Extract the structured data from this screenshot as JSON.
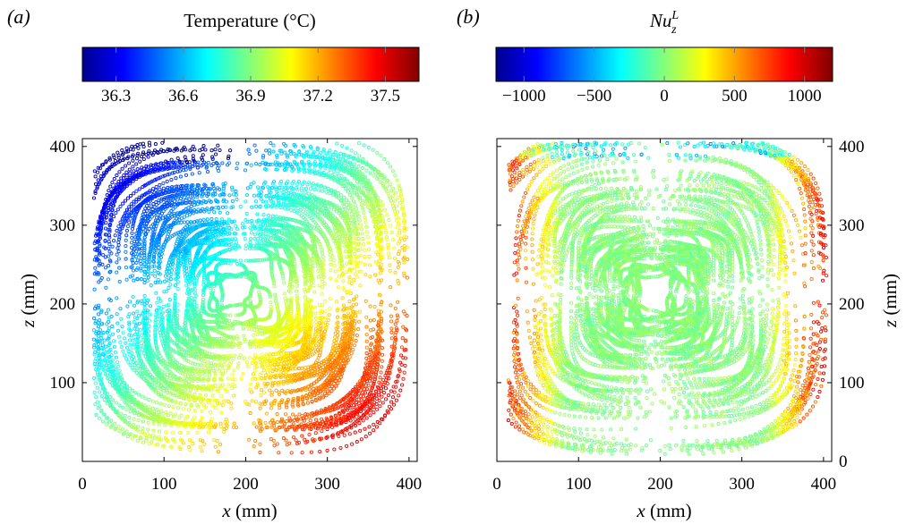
{
  "chart_data": [
    {
      "type": "scatter",
      "panel_label": "(a)",
      "colorbar": {
        "title": "Temperature (°C)",
        "min": 36.15,
        "max": 37.65,
        "ticks": [
          36.3,
          36.6,
          36.9,
          37.2,
          37.5
        ],
        "tick_labels": [
          "36.3",
          "36.6",
          "36.9",
          "37.2",
          "37.5"
        ],
        "colormap": [
          "#00008f",
          "#0000ff",
          "#00ffff",
          "#ffff00",
          "#ff0000",
          "#800000"
        ]
      },
      "xlabel": "x (mm)",
      "ylabel": "z (mm)",
      "xlim": [
        0,
        410
      ],
      "ylim": [
        0,
        410
      ],
      "xticks": [
        0,
        100,
        200,
        300,
        400
      ],
      "xtick_labels": [
        "0",
        "100",
        "200",
        "300",
        "400"
      ],
      "yticks": [
        100,
        200,
        300,
        400
      ],
      "ytick_labels": [
        "100",
        "200",
        "300",
        "400"
      ],
      "y_axis_side": "left",
      "field": "temperature",
      "trajectory_center": [
        195,
        215
      ],
      "trajectory_radius_range": [
        20,
        195
      ]
    },
    {
      "type": "scatter",
      "panel_label": "(b)",
      "colorbar": {
        "title_base": "Nu",
        "title_sub": "z",
        "title_sup": "L",
        "min": -1200,
        "max": 1200,
        "ticks": [
          -1000,
          -500,
          0,
          500,
          1000
        ],
        "tick_labels": [
          "−1000",
          "−500",
          "0",
          "500",
          "1000"
        ],
        "colormap": [
          "#00008f",
          "#0000ff",
          "#00ffff",
          "#ffff00",
          "#ff0000",
          "#800000"
        ]
      },
      "xlabel": "x (mm)",
      "ylabel": "z (mm)",
      "xlim": [
        0,
        410
      ],
      "ylim": [
        0,
        410
      ],
      "xticks": [
        0,
        100,
        200,
        300,
        400
      ],
      "xtick_labels": [
        "0",
        "100",
        "200",
        "300",
        "400"
      ],
      "yticks": [
        0,
        100,
        200,
        300,
        400
      ],
      "ytick_labels": [
        "0",
        "100",
        "200",
        "300",
        "400"
      ],
      "y_axis_side": "right",
      "field": "nusselt",
      "trajectory_center": [
        195,
        215
      ],
      "trajectory_radius_range": [
        20,
        195
      ]
    }
  ]
}
